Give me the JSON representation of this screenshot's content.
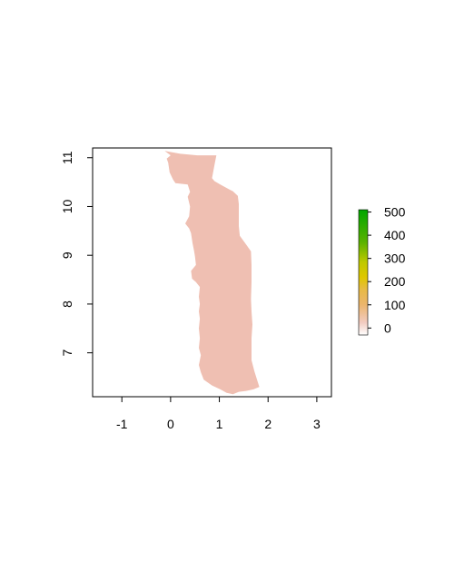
{
  "chart_data": {
    "type": "heatmap",
    "title": "",
    "xlabel": "",
    "ylabel": "",
    "xlim": [
      -1.6,
      3.3
    ],
    "ylim": [
      6.1,
      11.2
    ],
    "x_ticks": [
      -1,
      0,
      1,
      2,
      3
    ],
    "x_tick_labels": [
      "-1",
      "0",
      "1",
      "2",
      "3"
    ],
    "y_ticks": [
      7,
      8,
      9,
      10,
      11
    ],
    "y_tick_labels": [
      "7",
      "8",
      "9",
      "10",
      "11"
    ],
    "grid": false,
    "legend": {
      "placement": "right",
      "type": "colorbar",
      "range": [
        -30,
        510
      ],
      "ticks": [
        0,
        100,
        200,
        300,
        400,
        500
      ],
      "tick_labels": [
        "0",
        "100",
        "200",
        "300",
        "400",
        "500"
      ],
      "colors": [
        "#FFFFFF",
        "#F2CBC0",
        "#EBB56E",
        "#E8BA46",
        "#DFC700",
        "#8FC200",
        "#3BA800",
        "#00A600"
      ]
    },
    "raster": {
      "fill_color": "#EFBFB2",
      "approx_value": 25,
      "outline_lonlat": [
        [
          -0.12,
          11.14
        ],
        [
          0.2,
          11.08
        ],
        [
          0.55,
          11.05
        ],
        [
          0.94,
          11.05
        ],
        [
          0.9,
          10.85
        ],
        [
          0.85,
          10.58
        ],
        [
          0.9,
          10.52
        ],
        [
          1.02,
          10.45
        ],
        [
          1.28,
          10.31
        ],
        [
          1.38,
          10.22
        ],
        [
          1.4,
          10.05
        ],
        [
          1.4,
          9.6
        ],
        [
          1.42,
          9.4
        ],
        [
          1.55,
          9.22
        ],
        [
          1.65,
          9.08
        ],
        [
          1.66,
          8.8
        ],
        [
          1.66,
          8.45
        ],
        [
          1.65,
          8.1
        ],
        [
          1.66,
          7.85
        ],
        [
          1.68,
          7.58
        ],
        [
          1.66,
          7.3
        ],
        [
          1.66,
          7.0
        ],
        [
          1.66,
          6.85
        ],
        [
          1.72,
          6.62
        ],
        [
          1.82,
          6.3
        ],
        [
          1.7,
          6.25
        ],
        [
          1.55,
          6.22
        ],
        [
          1.4,
          6.2
        ],
        [
          1.28,
          6.15
        ],
        [
          1.15,
          6.18
        ],
        [
          1.02,
          6.25
        ],
        [
          0.85,
          6.33
        ],
        [
          0.68,
          6.45
        ],
        [
          0.62,
          6.6
        ],
        [
          0.58,
          6.75
        ],
        [
          0.62,
          6.95
        ],
        [
          0.58,
          7.1
        ],
        [
          0.6,
          7.3
        ],
        [
          0.58,
          7.5
        ],
        [
          0.6,
          7.7
        ],
        [
          0.58,
          7.85
        ],
        [
          0.6,
          8.0
        ],
        [
          0.58,
          8.15
        ],
        [
          0.6,
          8.35
        ],
        [
          0.52,
          8.45
        ],
        [
          0.44,
          8.52
        ],
        [
          0.42,
          8.68
        ],
        [
          0.52,
          8.8
        ],
        [
          0.5,
          8.98
        ],
        [
          0.48,
          9.1
        ],
        [
          0.45,
          9.25
        ],
        [
          0.42,
          9.45
        ],
        [
          0.38,
          9.55
        ],
        [
          0.3,
          9.65
        ],
        [
          0.38,
          9.8
        ],
        [
          0.4,
          10.0
        ],
        [
          0.35,
          10.2
        ],
        [
          0.4,
          10.3
        ],
        [
          0.35,
          10.45
        ],
        [
          0.1,
          10.48
        ],
        [
          0.05,
          10.55
        ],
        [
          -0.02,
          10.7
        ],
        [
          -0.05,
          10.9
        ],
        [
          -0.08,
          10.98
        ],
        [
          0.0,
          11.05
        ]
      ]
    }
  }
}
